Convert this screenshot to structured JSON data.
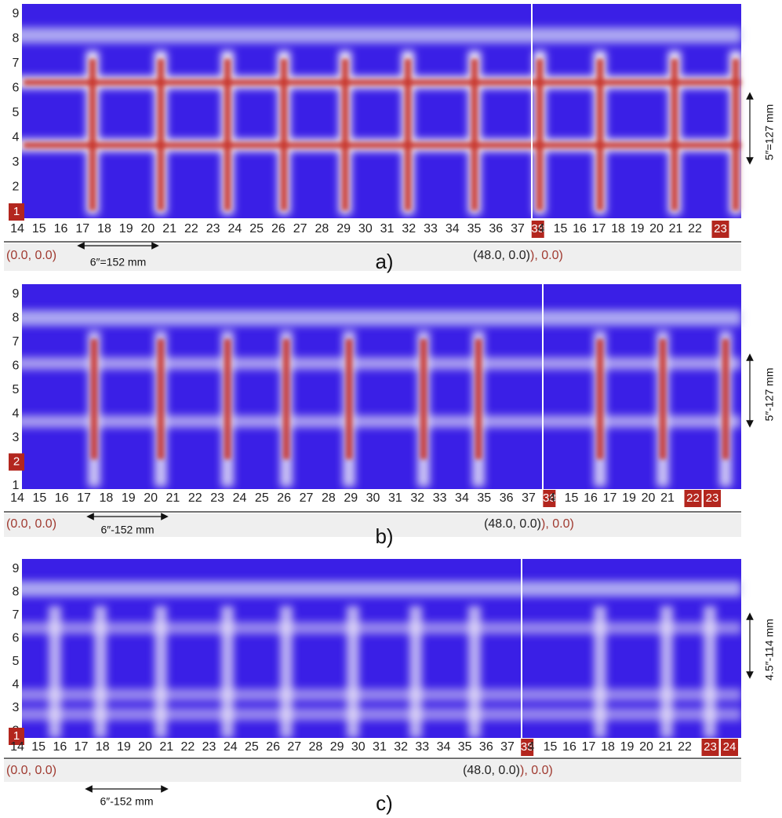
{
  "panels": [
    {
      "label": "a)",
      "marker": "1",
      "y_labels": [
        "9",
        "8",
        "7",
        "6",
        "5",
        "4",
        "3",
        "2"
      ],
      "x_labels_left": [
        "14",
        "15",
        "16",
        "17",
        "18",
        "19",
        "20",
        "21",
        "22",
        "23",
        "24",
        "25",
        "26",
        "27",
        "28",
        "29",
        "30",
        "31",
        "32",
        "33",
        "34",
        "35",
        "36",
        "37"
      ],
      "x_boxed_left": "38",
      "x_labels_right": [
        "4",
        "15",
        "16",
        "17",
        "18",
        "19",
        "20",
        "21",
        "22"
      ],
      "x_boxed_right": [
        "23"
      ],
      "origin": "(0.0, 0.0)",
      "mid_coord": "(48.0, 0.0)",
      "right_coord": "), 0.0)",
      "dim_horizontal": "6″=152 mm",
      "dim_vertical": "5″=127 mm"
    },
    {
      "label": "b)",
      "marker": "2",
      "y_labels": [
        "9",
        "8",
        "7",
        "6",
        "5",
        "4",
        "3",
        "1"
      ],
      "x_labels_left": [
        "14",
        "15",
        "16",
        "17",
        "18",
        "19",
        "20",
        "21",
        "22",
        "23",
        "24",
        "25",
        "26",
        "27",
        "28",
        "29",
        "30",
        "31",
        "32",
        "33",
        "34",
        "35",
        "36",
        "37"
      ],
      "x_boxed_left": "38",
      "x_labels_right": [
        "4",
        "15",
        "16",
        "17",
        "19",
        "20",
        "21"
      ],
      "x_boxed_right": [
        "22",
        "23"
      ],
      "origin": "(0.0, 0.0)",
      "mid_coord": "(48.0, 0.0)",
      "right_coord": "), 0.0)",
      "dim_horizontal": "6″-152 mm",
      "dim_vertical": "5″-127 mm"
    },
    {
      "label": "c)",
      "marker": "1",
      "y_labels": [
        "9",
        "8",
        "7",
        "6",
        "5",
        "4",
        "3",
        "2"
      ],
      "x_labels_left": [
        "14",
        "15",
        "16",
        "17",
        "18",
        "19",
        "20",
        "21",
        "22",
        "23",
        "24",
        "25",
        "26",
        "27",
        "28",
        "29",
        "30",
        "31",
        "32",
        "33",
        "34",
        "35",
        "36",
        "37"
      ],
      "x_boxed_left": "38",
      "x_labels_right": [
        "4",
        "15",
        "16",
        "17",
        "18",
        "19",
        "20",
        "21",
        "22"
      ],
      "x_boxed_right": [
        "23",
        "24"
      ],
      "origin": "(0.0, 0.0)",
      "mid_coord": "(48.0, 0.0)",
      "right_coord": "), 0.0)",
      "dim_horizontal": "6″-152 mm",
      "dim_vertical": "4.5″-114 mm"
    }
  ]
}
